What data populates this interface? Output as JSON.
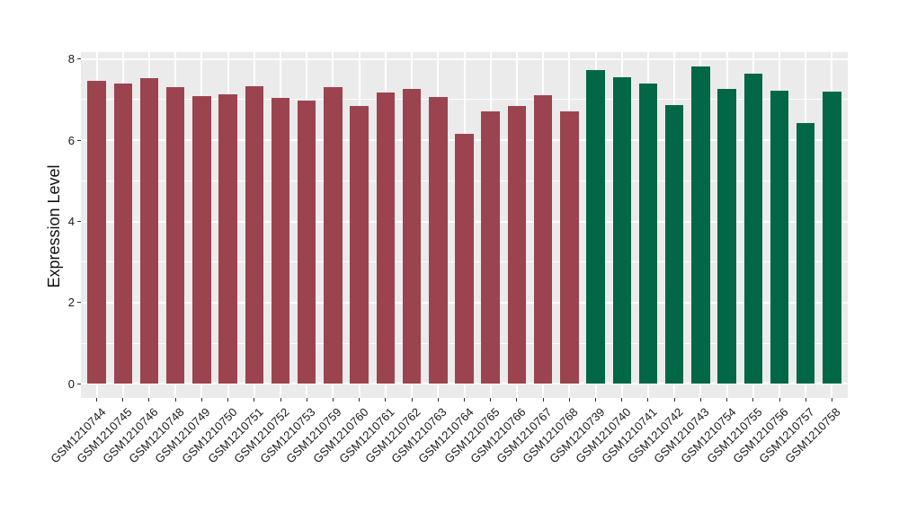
{
  "chart_data": {
    "type": "bar",
    "title": "",
    "xlabel": "",
    "ylabel": "Expression Level",
    "ylim": [
      0,
      8.17
    ],
    "yticks": [
      0,
      2,
      4,
      6,
      8
    ],
    "yticks_minor": [
      1,
      3,
      5,
      7
    ],
    "grid": true,
    "legend": "none",
    "panel_bg": "#EBEBEB",
    "grid_color": "#FFFFFF",
    "axis_text_color": "#1a1a1a",
    "tick_color": "#333333",
    "categories": [
      "GSM1210744",
      "GSM1210745",
      "GSM1210746",
      "GSM1210748",
      "GSM1210749",
      "GSM1210750",
      "GSM1210751",
      "GSM1210752",
      "GSM1210753",
      "GSM1210759",
      "GSM1210760",
      "GSM1210761",
      "GSM1210762",
      "GSM1210763",
      "GSM1210764",
      "GSM1210765",
      "GSM1210766",
      "GSM1210767",
      "GSM1210768",
      "GSM1210739",
      "GSM1210740",
      "GSM1210741",
      "GSM1210742",
      "GSM1210743",
      "GSM1210754",
      "GSM1210755",
      "GSM1210756",
      "GSM1210757",
      "GSM1210758"
    ],
    "values": [
      7.47,
      7.4,
      7.52,
      7.3,
      7.09,
      7.12,
      7.34,
      7.05,
      6.98,
      7.3,
      6.84,
      7.17,
      7.26,
      7.06,
      6.15,
      6.7,
      6.84,
      7.11,
      6.72,
      7.72,
      7.55,
      7.39,
      6.87,
      7.82,
      7.26,
      7.64,
      7.22,
      6.42,
      7.2
    ],
    "groups": [
      "group1",
      "group1",
      "group1",
      "group1",
      "group1",
      "group1",
      "group1",
      "group1",
      "group1",
      "group1",
      "group1",
      "group1",
      "group1",
      "group1",
      "group1",
      "group1",
      "group1",
      "group1",
      "group1",
      "group2",
      "group2",
      "group2",
      "group2",
      "group2",
      "group2",
      "group2",
      "group2",
      "group2",
      "group2"
    ],
    "group_colors": {
      "group1": "#9B4450",
      "group2": "#016746"
    }
  }
}
